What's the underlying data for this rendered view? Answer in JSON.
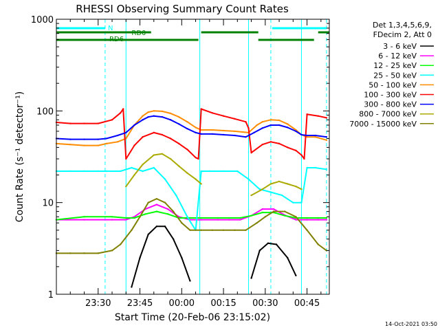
{
  "chart_data": {
    "type": "line",
    "title": "RHESSI Observing Summary Count Rates",
    "xlabel": "Start Time (20-Feb-06 23:15:02)",
    "ylabel": "Count Rate (s⁻¹ detector⁻¹)",
    "yscale": "log",
    "ylim": [
      1,
      1000
    ],
    "xlim_minutes": [
      0,
      98
    ],
    "x_ticks": [
      {
        "label": "23:30",
        "min": 15
      },
      {
        "label": "23:45",
        "min": 30
      },
      {
        "label": "00:00",
        "min": 45
      },
      {
        "label": "00:15",
        "min": 60
      },
      {
        "label": "00:30",
        "min": 75
      },
      {
        "label": "00:45",
        "min": 90
      }
    ],
    "y_ticks": [
      {
        "label": "1",
        "value": 1
      },
      {
        "label": "10",
        "value": 10
      },
      {
        "label": "100",
        "value": 100
      },
      {
        "label": "1000",
        "value": 1000
      }
    ],
    "legend_header": [
      "Det 1,3,4,5,6,9,",
      "FDecim 2, Att 0"
    ],
    "legend_position": "right",
    "series": [
      {
        "name": "3 - 6 keV",
        "color": "#000000",
        "x": [
          0,
          10,
          20,
          23,
          27,
          30,
          33,
          36,
          39,
          42,
          45,
          48,
          52,
          55,
          58,
          61,
          66,
          70,
          73,
          76,
          79,
          83,
          86,
          88,
          90,
          92,
          95,
          97
        ],
        "y": [
          null,
          null,
          null,
          null,
          1.2,
          2.5,
          4.5,
          5.5,
          5.5,
          4,
          2.5,
          1.4,
          null,
          null,
          null,
          null,
          null,
          1.5,
          3,
          3.6,
          3.5,
          2.5,
          1.6,
          null,
          null,
          null,
          null,
          null
        ]
      },
      {
        "name": "6 - 12 keV",
        "color": "#ff00ff",
        "x": [
          0,
          10,
          20,
          25,
          28,
          32,
          36,
          40,
          44,
          48,
          52,
          58,
          62,
          66,
          70,
          74,
          78,
          82,
          86,
          90,
          94,
          97
        ],
        "y": [
          6.5,
          6.5,
          6.5,
          6.5,
          7,
          8.5,
          9.5,
          8.5,
          7,
          6.5,
          6.5,
          6.5,
          6.5,
          6.5,
          7.2,
          8.5,
          8.5,
          7.3,
          6.5,
          6.5,
          6.5,
          6.5
        ]
      },
      {
        "name": "12 - 25 keV",
        "color": "#00ff00",
        "x": [
          0,
          10,
          20,
          25,
          28,
          32,
          36,
          40,
          44,
          48,
          52,
          58,
          62,
          66,
          70,
          74,
          78,
          82,
          86,
          90,
          94,
          97
        ],
        "y": [
          6.5,
          7,
          7,
          6.8,
          6.8,
          7.5,
          8,
          7.5,
          6.8,
          6.8,
          6.8,
          6.8,
          6.8,
          6.8,
          7.2,
          7.8,
          7.8,
          7.2,
          6.8,
          6.8,
          6.8,
          6.8
        ]
      },
      {
        "name": "25 - 50 keV",
        "color": "#00ffff",
        "x": [
          0,
          5,
          10,
          15,
          18,
          23,
          27,
          31,
          35,
          39,
          43,
          47,
          50,
          52,
          55,
          60,
          65,
          69,
          73,
          77,
          81,
          85,
          88,
          90,
          93,
          97
        ],
        "y": [
          22,
          22,
          22,
          22,
          22,
          22,
          24,
          22,
          24,
          18,
          12,
          7,
          5,
          22,
          22,
          22,
          22,
          18,
          14,
          13,
          12,
          10,
          10,
          24,
          24,
          23
        ]
      },
      {
        "name": "50 - 100 keV",
        "color": "#ff8c00",
        "x": [
          0,
          5,
          10,
          15,
          18,
          22,
          25,
          28,
          31,
          33,
          35,
          38,
          41,
          44,
          47,
          50,
          52,
          56,
          60,
          64,
          69,
          72,
          74,
          77,
          80,
          83,
          86,
          88,
          90,
          93,
          97
        ],
        "y": [
          44,
          43,
          42,
          42,
          44,
          46,
          50,
          70,
          88,
          97,
          100,
          99,
          94,
          86,
          76,
          66,
          62,
          62,
          61,
          60,
          58,
          70,
          76,
          80,
          79,
          72,
          62,
          55,
          52,
          52,
          48
        ]
      },
      {
        "name": "100 - 300 keV",
        "color": "#ff0000",
        "x": [
          0,
          5,
          10,
          15,
          20,
          23,
          24,
          25,
          28,
          31,
          35,
          38,
          41,
          44,
          47,
          50,
          51,
          52,
          56,
          60,
          64,
          68,
          69,
          70,
          74,
          77,
          80,
          83,
          86,
          88,
          89,
          90,
          94,
          97
        ],
        "y": [
          75,
          73,
          73,
          73,
          80,
          95,
          105,
          30,
          42,
          52,
          58,
          55,
          50,
          44,
          38,
          31,
          30,
          105,
          95,
          88,
          82,
          76,
          65,
          35,
          43,
          46,
          44,
          40,
          37,
          33,
          30,
          92,
          88,
          84
        ]
      },
      {
        "name": "300 - 800 keV",
        "color": "#0000ff",
        "x": [
          0,
          5,
          10,
          15,
          18,
          22,
          25,
          28,
          31,
          33,
          35,
          38,
          41,
          44,
          47,
          50,
          52,
          56,
          60,
          64,
          68,
          71,
          74,
          77,
          80,
          83,
          86,
          88,
          90,
          93,
          97
        ],
        "y": [
          50,
          49,
          49,
          49,
          50,
          54,
          58,
          70,
          80,
          86,
          88,
          86,
          80,
          72,
          64,
          58,
          56,
          56,
          55,
          54,
          52,
          58,
          65,
          70,
          70,
          66,
          60,
          55,
          54,
          54,
          52
        ]
      },
      {
        "name": "800 - 7000 keV",
        "color": "#aaaa00",
        "x": [
          0,
          25,
          28,
          31,
          35,
          38,
          41,
          44,
          47,
          50,
          52,
          56,
          60,
          64,
          68,
          70,
          74,
          77,
          80,
          83,
          86,
          88,
          90,
          93,
          97
        ],
        "y": [
          null,
          15,
          20,
          26,
          33,
          34,
          30,
          25,
          21,
          18,
          16,
          null,
          null,
          null,
          null,
          12,
          14,
          16,
          17,
          16,
          15,
          14,
          null,
          null,
          null
        ]
      },
      {
        "name": "7000 - 15000 keV",
        "color": "#808000",
        "x": [
          0,
          5,
          10,
          15,
          20,
          23,
          27,
          30,
          33,
          36,
          39,
          42,
          45,
          48,
          52,
          56,
          60,
          64,
          68,
          72,
          75,
          78,
          82,
          86,
          90,
          94,
          97
        ],
        "y": [
          2.8,
          2.8,
          2.8,
          2.8,
          3,
          3.5,
          5,
          7,
          10,
          11,
          10,
          8,
          6,
          5,
          5,
          5,
          5,
          5,
          5,
          6,
          7,
          8,
          8,
          7,
          5,
          3.5,
          3
        ]
      }
    ],
    "vertical_lines": [
      {
        "min": 0,
        "color": "#00ffff",
        "style": "solid"
      },
      {
        "min": 17.5,
        "color": "#00ffff",
        "style": "dashed"
      },
      {
        "min": 25,
        "color": "#00ffff",
        "style": "solid"
      },
      {
        "min": 51.5,
        "color": "#00ffff",
        "style": "solid"
      },
      {
        "min": 69,
        "color": "#00ffff",
        "style": "solid"
      },
      {
        "min": 77,
        "color": "#00ffff",
        "style": "dashed"
      },
      {
        "min": 88,
        "color": "#00ffff",
        "style": "solid"
      },
      {
        "min": 97,
        "color": "#00ffff",
        "style": "dashed"
      }
    ],
    "flag_bars": [
      {
        "label": "N",
        "color": "#00ffff",
        "segments": [
          [
            0,
            17.5
          ],
          [
            77.5,
            97
          ]
        ]
      },
      {
        "label": "RD0",
        "color": "#008000",
        "segments": [
          [
            0,
            34
          ],
          [
            52,
            72.5
          ],
          [
            94,
            98
          ]
        ]
      },
      {
        "label": "RD6",
        "color": "#008000",
        "segments": [
          [
            0,
            51
          ],
          [
            72.5,
            92.5
          ]
        ]
      }
    ]
  },
  "footer": {
    "timestamp": "14-Oct-2021 03:50"
  }
}
